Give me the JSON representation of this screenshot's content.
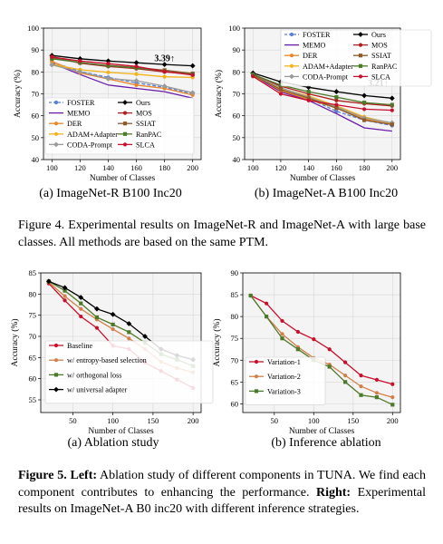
{
  "figure4": {
    "caption": "Figure 4.  Experimental results on ImageNet-R and ImageNet-A with large base classes. All methods are based on the same PTM.",
    "subcaption_a": "(a) ImageNet-R B100 Inc20",
    "subcaption_b": "(b) ImageNet-A B100 Inc20"
  },
  "figure5": {
    "caption_lead": "Figure 5.",
    "caption_left_label": "Left:",
    "caption_left_text": " Ablation study of different components in TUNA. We find each component contributes to enhancing the performance. ",
    "caption_right_label": "Right:",
    "caption_right_text": " Experimental results on ImageNet-A B0 inc20 with different inference strategies.",
    "subcaption_a": "(a) Ablation study",
    "subcaption_b": "(b) Inference ablation"
  },
  "chart_data": [
    {
      "id": "imagenet-r",
      "type": "line",
      "xlabel": "Number of Classes",
      "ylabel": "Accuracy (%)",
      "x": [
        100,
        120,
        140,
        160,
        180,
        200
      ],
      "xticks": [
        100,
        120,
        140,
        160,
        180,
        200
      ],
      "yticks": [
        40,
        50,
        60,
        70,
        80,
        90,
        100
      ],
      "ylim": [
        40,
        100
      ],
      "grid": true,
      "legend": "lower-left, two columns",
      "annotation": {
        "text": "3.39↑",
        "x": 180,
        "y": 84.8
      },
      "series": [
        {
          "name": "FOSTER",
          "color": "#5b7fd6",
          "marker": "circle",
          "dash": true,
          "values": [
            84.5,
            80.2,
            77.5,
            75.0,
            73.0,
            70.0
          ]
        },
        {
          "name": "MEMO",
          "color": "#6a1ba8",
          "marker": "none",
          "values": [
            84.0,
            78.8,
            74.0,
            72.5,
            71.0,
            68.0
          ]
        },
        {
          "name": "DER",
          "color": "#e8862a",
          "marker": "circle",
          "values": [
            84.8,
            79.5,
            76.8,
            74.0,
            72.5,
            69.5
          ]
        },
        {
          "name": "ADAM+Adapter",
          "color": "#f2b41a",
          "marker": "circle",
          "values": [
            83.5,
            81.0,
            79.8,
            79.0,
            77.8,
            77.5
          ]
        },
        {
          "name": "CODA-Prompt",
          "color": "#9a9a9a",
          "marker": "diamond",
          "values": [
            83.2,
            80.0,
            77.0,
            76.0,
            73.5,
            70.5
          ]
        },
        {
          "name": "Ours",
          "color": "#000000",
          "marker": "diamond",
          "values": [
            87.5,
            86.0,
            85.0,
            84.2,
            83.4,
            82.8
          ]
        },
        {
          "name": "MOS",
          "color": "#b01f1f",
          "marker": "circle",
          "values": [
            87.0,
            84.0,
            82.5,
            81.5,
            80.0,
            79.0
          ]
        },
        {
          "name": "SSIAT",
          "color": "#8c5a2b",
          "marker": "square",
          "values": [
            86.5,
            84.2,
            83.0,
            82.0,
            80.8,
            79.3
          ]
        },
        {
          "name": "RanPAC",
          "color": "#4d7a2a",
          "marker": "square",
          "values": [
            86.0,
            84.3,
            82.8,
            81.8,
            80.3,
            78.8
          ]
        },
        {
          "name": "SLCA",
          "color": "#c8102e",
          "marker": "circle",
          "values": [
            86.8,
            85.0,
            83.8,
            82.5,
            80.2,
            78.6
          ]
        }
      ]
    },
    {
      "id": "imagenet-a",
      "type": "line",
      "xlabel": "Number of Classes",
      "ylabel": "Accuracy (%)",
      "x": [
        100,
        120,
        140,
        160,
        180,
        200
      ],
      "xticks": [
        100,
        120,
        140,
        160,
        180,
        200
      ],
      "yticks": [
        40,
        50,
        60,
        70,
        80,
        90,
        100
      ],
      "ylim": [
        40,
        100
      ],
      "grid": true,
      "legend": "top, two columns",
      "annotation": {
        "text": "3.21↑",
        "x": 190,
        "y": 73.5
      },
      "series": [
        {
          "name": "FOSTER",
          "color": "#5b7fd6",
          "marker": "circle",
          "dash": true,
          "values": [
            79.0,
            72.0,
            68.0,
            62.0,
            58.0,
            55.5
          ]
        },
        {
          "name": "MEMO",
          "color": "#6a1ba8",
          "marker": "none",
          "values": [
            78.5,
            71.0,
            67.0,
            61.0,
            54.5,
            53.0
          ]
        },
        {
          "name": "DER",
          "color": "#e8862a",
          "marker": "circle",
          "values": [
            78.8,
            71.5,
            67.5,
            63.5,
            58.5,
            56.0
          ]
        },
        {
          "name": "ADAM+Adapter",
          "color": "#f2b41a",
          "marker": "circle",
          "values": [
            78.0,
            72.5,
            69.0,
            64.5,
            59.5,
            56.5
          ]
        },
        {
          "name": "CODA-Prompt",
          "color": "#9a9a9a",
          "marker": "diamond",
          "values": [
            79.0,
            72.8,
            68.5,
            64.0,
            59.0,
            56.8
          ]
        },
        {
          "name": "Ours",
          "color": "#000000",
          "marker": "diamond",
          "values": [
            79.5,
            75.5,
            73.0,
            71.0,
            69.2,
            68.0
          ]
        },
        {
          "name": "MOS",
          "color": "#b01f1f",
          "marker": "circle",
          "values": [
            79.0,
            73.5,
            70.0,
            67.0,
            65.5,
            64.5
          ]
        },
        {
          "name": "SSIAT",
          "color": "#8c5a2b",
          "marker": "square",
          "values": [
            78.5,
            72.0,
            68.0,
            63.5,
            58.0,
            56.0
          ]
        },
        {
          "name": "RanPAC",
          "color": "#4d7a2a",
          "marker": "square",
          "values": [
            78.8,
            74.0,
            71.0,
            68.5,
            66.0,
            65.0
          ]
        },
        {
          "name": "SLCA",
          "color": "#c8102e",
          "marker": "circle",
          "values": [
            78.0,
            70.0,
            67.0,
            65.0,
            63.0,
            62.5
          ]
        }
      ]
    },
    {
      "id": "ablation",
      "type": "line",
      "xlabel": "Number of Classes",
      "ylabel": "Accuracy (%)",
      "x": [
        20,
        40,
        60,
        80,
        100,
        120,
        140,
        160,
        180,
        200
      ],
      "xticks": [
        50,
        100,
        150,
        200
      ],
      "yticks": [
        55,
        60,
        65,
        70,
        75,
        80,
        85
      ],
      "ylim": [
        52,
        85
      ],
      "xlim": [
        10,
        210
      ],
      "grid": true,
      "legend": "lower-left",
      "series": [
        {
          "name": "Baseline",
          "color": "#c8102e",
          "marker": "circle",
          "values": [
            82.5,
            78.5,
            74.7,
            72.0,
            67.8,
            67.0,
            63.8,
            61.8,
            59.8,
            57.8
          ]
        },
        {
          "name": "w/ entropy-based selection",
          "color": "#d2804a",
          "marker": "circle",
          "values": [
            82.8,
            79.5,
            76.5,
            74.0,
            71.7,
            69.5,
            67.0,
            64.0,
            62.5,
            61.5
          ]
        },
        {
          "name": "w/ orthogonal loss",
          "color": "#4d7a2a",
          "marker": "square",
          "values": [
            83.0,
            80.8,
            77.8,
            74.5,
            72.8,
            71.0,
            68.5,
            65.8,
            64.5,
            63.0
          ]
        },
        {
          "name": "w/ universal adapter",
          "color": "#000000",
          "marker": "diamond",
          "values": [
            83.0,
            81.5,
            79.2,
            76.5,
            75.2,
            73.0,
            70.0,
            67.0,
            65.5,
            64.5
          ]
        }
      ]
    },
    {
      "id": "inference",
      "type": "line",
      "xlabel": "Number of Classes",
      "ylabel": "Accuracy (%)",
      "x": [
        20,
        40,
        60,
        80,
        100,
        120,
        140,
        160,
        180,
        200
      ],
      "xticks": [
        50,
        100,
        150,
        200
      ],
      "yticks": [
        60,
        65,
        70,
        75,
        80,
        85,
        90
      ],
      "ylim": [
        58,
        90
      ],
      "xlim": [
        10,
        210
      ],
      "grid": true,
      "legend": "lower-left",
      "series": [
        {
          "name": "Variation-1",
          "color": "#c8102e",
          "marker": "circle",
          "values": [
            84.8,
            83.0,
            79.0,
            76.5,
            74.8,
            72.5,
            69.5,
            66.5,
            65.5,
            64.5
          ]
        },
        {
          "name": "Variation-2",
          "color": "#d2804a",
          "marker": "circle",
          "values": [
            84.8,
            80.0,
            76.0,
            73.0,
            70.5,
            69.0,
            66.5,
            64.0,
            62.5,
            61.5
          ]
        },
        {
          "name": "Variation-3",
          "color": "#4d7a2a",
          "marker": "square",
          "values": [
            84.8,
            80.0,
            75.0,
            72.5,
            70.0,
            68.5,
            65.0,
            62.0,
            61.5,
            59.8
          ]
        }
      ]
    }
  ]
}
